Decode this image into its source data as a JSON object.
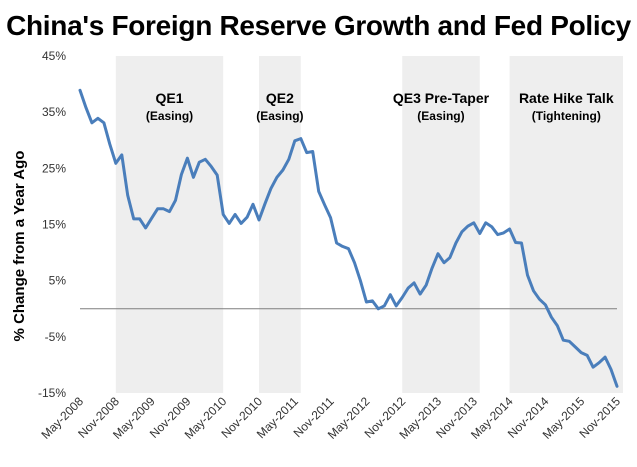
{
  "chart_data": {
    "type": "line",
    "title": "China's Foreign Reserve Growth and Fed Policy",
    "ylabel": "% Change from a Year Ago",
    "xlabel": "",
    "ylim": [
      -15,
      45
    ],
    "yticks": [
      45,
      35,
      25,
      15,
      5,
      -5,
      -15
    ],
    "ytick_labels": [
      "45%",
      "35%",
      "25%",
      "15%",
      "5%",
      "-5%",
      "-15%"
    ],
    "x_start": "May-2008",
    "x_end": "Dec-2015",
    "xtick_labels": [
      "May-2008",
      "Nov-2008",
      "May-2009",
      "Nov-2009",
      "May-2010",
      "Nov-2010",
      "May-2011",
      "Nov-2011",
      "May-2012",
      "Nov-2012",
      "May-2013",
      "Nov-2013",
      "May-2014",
      "Nov-2014",
      "May-2015",
      "Nov-2015"
    ],
    "xtick_months": [
      0,
      6,
      12,
      18,
      24,
      30,
      36,
      42,
      48,
      54,
      60,
      66,
      72,
      78,
      84,
      90
    ],
    "bands": [
      {
        "title": "QE1",
        "subtitle": "(Easing)",
        "start_month": 6,
        "end_month": 24
      },
      {
        "title": "QE2",
        "subtitle": "(Easing)",
        "start_month": 30,
        "end_month": 37
      },
      {
        "title": "QE3 Pre-Taper",
        "subtitle": "(Easing)",
        "start_month": 54,
        "end_month": 67
      },
      {
        "title": "Rate Hike Talk",
        "subtitle": "(Tightening)",
        "start_month": 72,
        "end_month": 91
      }
    ],
    "series": [
      {
        "name": "China Foreign Reserves, % Change from a Year Ago",
        "color": "#4a7ebb",
        "values": [
          38.9,
          35.8,
          33.1,
          33.9,
          33.1,
          29.3,
          25.9,
          27.4,
          20.2,
          16.0,
          16.0,
          14.4,
          16.1,
          17.8,
          17.8,
          17.3,
          19.3,
          23.9,
          26.8,
          23.4,
          26.1,
          26.6,
          25.3,
          23.8,
          16.8,
          15.2,
          16.8,
          15.2,
          16.3,
          18.6,
          15.8,
          18.7,
          21.4,
          23.4,
          24.7,
          26.6,
          29.9,
          30.3,
          27.8,
          28.0,
          20.9,
          18.5,
          16.2,
          11.7,
          11.1,
          10.7,
          8.2,
          5.0,
          1.2,
          1.4,
          0.0,
          0.5,
          2.5,
          0.5,
          2.0,
          3.7,
          4.6,
          2.6,
          4.2,
          7.2,
          9.8,
          8.2,
          9.1,
          11.7,
          13.7,
          14.7,
          15.3,
          13.4,
          15.3,
          14.6,
          13.2,
          13.5,
          14.2,
          11.8,
          11.7,
          6.0,
          3.2,
          1.7,
          0.7,
          -1.5,
          -3.0,
          -5.6,
          -5.8,
          -6.8,
          -7.8,
          -8.3,
          -10.4,
          -9.6,
          -8.6,
          -10.8,
          -13.8
        ]
      }
    ]
  }
}
